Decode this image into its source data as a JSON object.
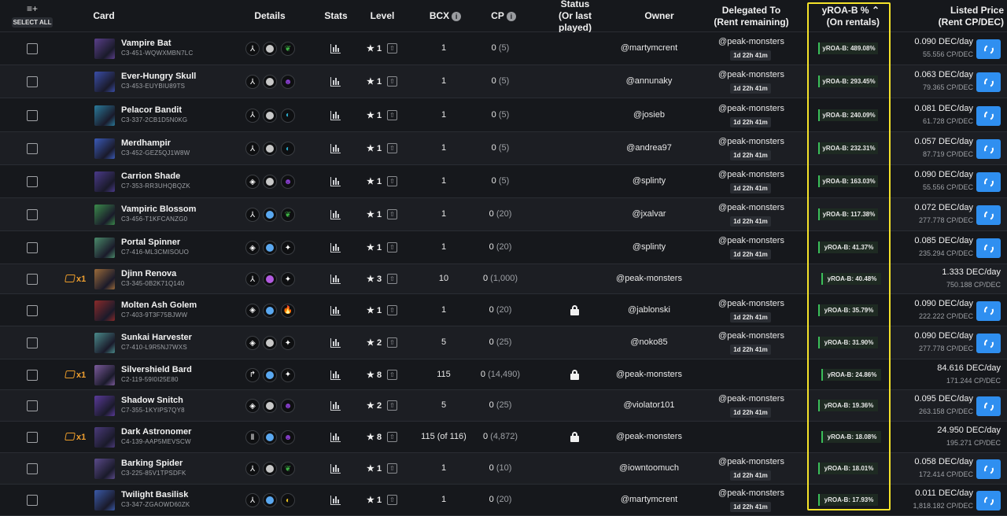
{
  "header": {
    "select_all_icon": "≡+",
    "select_all": "SELECT ALL",
    "card": "Card",
    "details": "Details",
    "stats": "Stats",
    "level": "Level",
    "bcx": "BCX",
    "cp": "CP",
    "status": "Status",
    "status_sub": "(Or last played)",
    "owner": "Owner",
    "delegated": "Delegated To",
    "delegated_sub": "(Rent remaining)",
    "yroa": "yROA-B %",
    "yroa_sort": "⌃",
    "yroa_sub": "(On rentals)",
    "listed": "Listed Price",
    "listed_sub": "(Rent CP/DEC)",
    "info_glyph": "i"
  },
  "colors": {
    "accent_blue": "#2f8ff0",
    "highlight_yellow": "#f5e32a",
    "yroa_green": "#3bbf5a",
    "bundle_orange": "#f0a030"
  },
  "rows": [
    {
      "name": "Vampire Bat",
      "uid": "C3-451-WQWXMBN7LC",
      "bundle": "",
      "d1": "⅄",
      "dot": "#c8c8c8",
      "el": "#3cb043",
      "elg": "❦",
      "level": "1",
      "bcx": "1",
      "cp": "0",
      "cp_paren": "(5)",
      "lock": false,
      "owner": "@martymcrent",
      "deleg": "@peak-monsters",
      "rem": "1d 22h 41m",
      "yroa": "yROA-B: 489.08%",
      "price": "0.090 DEC/day",
      "cpdec": "55.556 CP/DEC",
      "refresh": true
    },
    {
      "name": "Ever-Hungry Skull",
      "uid": "C3-453-EUYBIU89TS",
      "bundle": "",
      "d1": "⅄",
      "dot": "#c8c8c8",
      "el": "#8a3fd1",
      "elg": "☻",
      "level": "1",
      "bcx": "1",
      "cp": "0",
      "cp_paren": "(5)",
      "lock": false,
      "owner": "@annunaky",
      "deleg": "@peak-monsters",
      "rem": "1d 22h 41m",
      "yroa": "yROA-B: 293.45%",
      "price": "0.063 DEC/day",
      "cpdec": "79.365 CP/DEC",
      "refresh": true
    },
    {
      "name": "Pelacor Bandit",
      "uid": "C3-337-2CB1D5N0KG",
      "bundle": "",
      "d1": "⅄",
      "dot": "#c8c8c8",
      "el": "#2aa8c8",
      "elg": "◐",
      "level": "1",
      "bcx": "1",
      "cp": "0",
      "cp_paren": "(5)",
      "lock": false,
      "owner": "@josieb",
      "deleg": "@peak-monsters",
      "rem": "1d 22h 41m",
      "yroa": "yROA-B: 240.09%",
      "price": "0.081 DEC/day",
      "cpdec": "61.728 CP/DEC",
      "refresh": true
    },
    {
      "name": "Merdhampir",
      "uid": "C3-452-GEZ5QJ1W8W",
      "bundle": "",
      "d1": "⅄",
      "dot": "#c8c8c8",
      "el": "#2aa8c8",
      "elg": "◐",
      "level": "1",
      "bcx": "1",
      "cp": "0",
      "cp_paren": "(5)",
      "lock": false,
      "owner": "@andrea97",
      "deleg": "@peak-monsters",
      "rem": "1d 22h 41m",
      "yroa": "yROA-B: 232.31%",
      "price": "0.057 DEC/day",
      "cpdec": "87.719 CP/DEC",
      "refresh": true
    },
    {
      "name": "Carrion Shade",
      "uid": "C7-353-RR3UHQBQZK",
      "bundle": "",
      "d1": "◈",
      "dot": "#c8c8c8",
      "el": "#8a3fd1",
      "elg": "☻",
      "level": "1",
      "bcx": "1",
      "cp": "0",
      "cp_paren": "(5)",
      "lock": false,
      "owner": "@splinty",
      "deleg": "@peak-monsters",
      "rem": "1d 22h 41m",
      "yroa": "yROA-B: 163.03%",
      "price": "0.090 DEC/day",
      "cpdec": "55.556 CP/DEC",
      "refresh": true
    },
    {
      "name": "Vampiric Blossom",
      "uid": "C3-456-T1KFCANZG0",
      "bundle": "",
      "d1": "⅄",
      "dot": "#5aa8f0",
      "el": "#3cb043",
      "elg": "❦",
      "level": "1",
      "bcx": "1",
      "cp": "0",
      "cp_paren": "(20)",
      "lock": false,
      "owner": "@jxalvar",
      "deleg": "@peak-monsters",
      "rem": "1d 22h 41m",
      "yroa": "yROA-B: 117.38%",
      "price": "0.072 DEC/day",
      "cpdec": "277.778 CP/DEC",
      "refresh": true
    },
    {
      "name": "Portal Spinner",
      "uid": "C7-416-ML3CMISOUO",
      "bundle": "",
      "d1": "◈",
      "dot": "#5aa8f0",
      "el": "#0e0f11",
      "elg": "✦",
      "level": "1",
      "bcx": "1",
      "cp": "0",
      "cp_paren": "(20)",
      "lock": false,
      "owner": "@splinty",
      "deleg": "@peak-monsters",
      "rem": "1d 22h 41m",
      "yroa": "yROA-B: 41.37%",
      "price": "0.085 DEC/day",
      "cpdec": "235.294 CP/DEC",
      "refresh": true
    },
    {
      "name": "Djinn Renova",
      "uid": "C3-345-0B2K71Q140",
      "bundle": "x1",
      "d1": "⅄",
      "dot": "#b25ae0",
      "el": "#0e0f11",
      "elg": "✦",
      "level": "3",
      "bcx": "10",
      "cp": "0",
      "cp_paren": "(1,000)",
      "lock": false,
      "owner": "@peak-monsters",
      "deleg": "",
      "rem": "",
      "yroa": "yROA-B: 40.48%",
      "price": "1.333 DEC/day",
      "cpdec": "750.188 CP/DEC",
      "refresh": false
    },
    {
      "name": "Molten Ash Golem",
      "uid": "C7-403-9T3F75BJWW",
      "bundle": "",
      "d1": "◈",
      "dot": "#5aa8f0",
      "el": "#0e0f11",
      "elg": "🔥",
      "level": "1",
      "bcx": "1",
      "cp": "0",
      "cp_paren": "(20)",
      "lock": true,
      "owner": "@jablonski",
      "deleg": "@peak-monsters",
      "rem": "1d 22h 41m",
      "yroa": "yROA-B: 35.79%",
      "price": "0.090 DEC/day",
      "cpdec": "222.222 CP/DEC",
      "refresh": true
    },
    {
      "name": "Sunkai Harvester",
      "uid": "C7-410-L9R5NJ7WXS",
      "bundle": "",
      "d1": "◈",
      "dot": "#c8c8c8",
      "el": "#0e0f11",
      "elg": "✦",
      "level": "2",
      "bcx": "5",
      "cp": "0",
      "cp_paren": "(25)",
      "lock": false,
      "owner": "@noko85",
      "deleg": "@peak-monsters",
      "rem": "1d 22h 41m",
      "yroa": "yROA-B: 31.90%",
      "price": "0.090 DEC/day",
      "cpdec": "277.778 CP/DEC",
      "refresh": true
    },
    {
      "name": "Silvershield Bard",
      "uid": "C2-119-59I0I25E80",
      "bundle": "x1",
      "d1": "↱",
      "dot": "#5aa8f0",
      "el": "#0e0f11",
      "elg": "✦",
      "level": "8",
      "bcx": "115",
      "cp": "0",
      "cp_paren": "(14,490)",
      "lock": true,
      "owner": "@peak-monsters",
      "deleg": "",
      "rem": "",
      "yroa": "yROA-B: 24.86%",
      "price": "84.616 DEC/day",
      "cpdec": "171.244 CP/DEC",
      "refresh": false
    },
    {
      "name": "Shadow Snitch",
      "uid": "C7-355-1KYIPS7QY8",
      "bundle": "",
      "d1": "◈",
      "dot": "#c8c8c8",
      "el": "#8a3fd1",
      "elg": "☻",
      "level": "2",
      "bcx": "5",
      "cp": "0",
      "cp_paren": "(25)",
      "lock": false,
      "owner": "@violator101",
      "deleg": "@peak-monsters",
      "rem": "1d 22h 41m",
      "yroa": "yROA-B: 19.36%",
      "price": "0.095 DEC/day",
      "cpdec": "263.158 CP/DEC",
      "refresh": true
    },
    {
      "name": "Dark Astronomer",
      "uid": "C4-139-AAP5MEVSCW",
      "bundle": "x1",
      "d1": "Ⅱ",
      "dot": "#5aa8f0",
      "el": "#8a3fd1",
      "elg": "☻",
      "level": "8",
      "bcx": "115 (of 116)",
      "cp": "0",
      "cp_paren": "(4,872)",
      "lock": true,
      "owner": "@peak-monsters",
      "deleg": "",
      "rem": "",
      "yroa": "yROA-B: 18.08%",
      "price": "24.950 DEC/day",
      "cpdec": "195.271 CP/DEC",
      "refresh": false
    },
    {
      "name": "Barking Spider",
      "uid": "C3-225-85V1TPSDFK",
      "bundle": "",
      "d1": "⅄",
      "dot": "#c8c8c8",
      "el": "#3cb043",
      "elg": "❦",
      "level": "1",
      "bcx": "1",
      "cp": "0",
      "cp_paren": "(10)",
      "lock": false,
      "owner": "@iowntoomuch",
      "deleg": "@peak-monsters",
      "rem": "1d 22h 41m",
      "yroa": "yROA-B: 18.01%",
      "price": "0.058 DEC/day",
      "cpdec": "172.414 CP/DEC",
      "refresh": true
    },
    {
      "name": "Twilight Basilisk",
      "uid": "C3-347-ZGAOWD60ZK",
      "bundle": "",
      "d1": "⅄",
      "dot": "#5aa8f0",
      "el": "#e8c020",
      "elg": "◐",
      "level": "1",
      "bcx": "1",
      "cp": "0",
      "cp_paren": "(20)",
      "lock": false,
      "owner": "@martymcrent",
      "deleg": "@peak-monsters",
      "rem": "1d 22h 41m",
      "yroa": "yROA-B: 17.93%",
      "price": "0.011 DEC/day",
      "cpdec": "1,818.182 CP/DEC",
      "refresh": true
    }
  ]
}
